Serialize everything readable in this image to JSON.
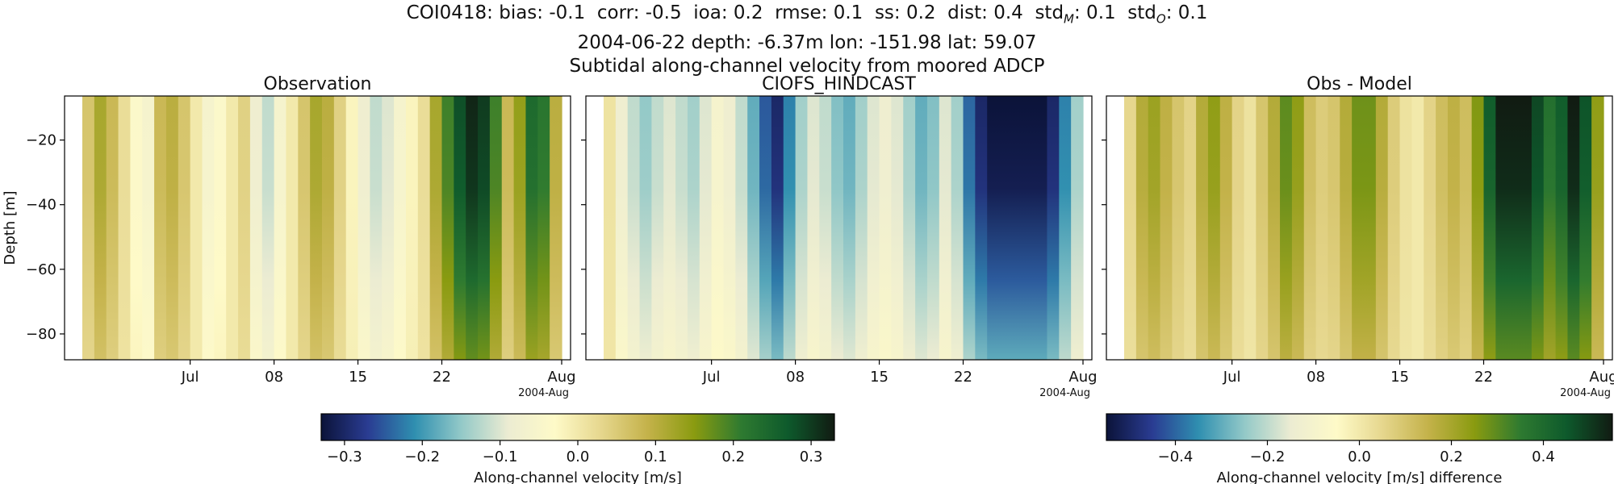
{
  "figure": {
    "title_lines": [
      "2004-06-22 depth: -6.37m lon: -151.98 lat: 59.07",
      "Subtidal along-channel velocity from moored ADCP"
    ],
    "stats": {
      "station": "COI0418",
      "items": [
        {
          "label": "bias",
          "value": "-0.1"
        },
        {
          "label": "corr",
          "value": "-0.5"
        },
        {
          "label": "ioa",
          "value": "0.2"
        },
        {
          "label": "rmse",
          "value": "0.1"
        },
        {
          "label": "ss",
          "value": "0.2"
        },
        {
          "label": "dist",
          "value": "0.4"
        },
        {
          "label": "std",
          "sub": "M",
          "value": "0.1"
        },
        {
          "label": "std",
          "sub": "O",
          "value": "0.1"
        }
      ]
    },
    "colors": {
      "cmap": [
        "#0b1339",
        "#2a3c92",
        "#2f8fb0",
        "#93c9c8",
        "#ececd2",
        "#fefac8",
        "#e6d78e",
        "#c4b24a",
        "#8a9b10",
        "#2e7a30",
        "#0e5a2c",
        "#111b12"
      ],
      "axis": "#000000",
      "background": "#ffffff"
    }
  },
  "chart_data": [
    {
      "type": "heatmap",
      "title": "Observation",
      "ylabel": "Depth [m]",
      "xlabel": "",
      "x_range": [
        "2004-06-22",
        "2004-08-01"
      ],
      "ylim": [
        -88,
        -6.37
      ],
      "x_ticks": [
        {
          "date": "2004-07-01",
          "label": "Jul"
        },
        {
          "date": "2004-07-08",
          "label": "08"
        },
        {
          "date": "2004-07-15",
          "label": "15"
        },
        {
          "date": "2004-07-22",
          "label": "22"
        },
        {
          "date": "2004-08-01",
          "label": "Aug"
        }
      ],
      "x_offset_label": "2004-Aug",
      "y_ticks": [
        -20,
        -40,
        -60,
        -80
      ],
      "clim": [
        -0.33,
        0.33
      ],
      "column_values": [
        0.06,
        0.12,
        0.08,
        0.02,
        -0.04,
        -0.06,
        0.08,
        0.1,
        0.06,
        0.0,
        -0.06,
        -0.04,
        0.0,
        0.04,
        -0.08,
        -0.12,
        -0.06,
        0.0,
        0.06,
        0.12,
        0.1,
        0.04,
        -0.02,
        -0.08,
        -0.12,
        -0.1,
        -0.06,
        -0.02,
        0.02,
        0.12,
        0.2,
        0.28,
        0.32,
        0.3,
        0.2,
        0.08,
        0.14,
        0.24,
        0.22,
        0.1
      ]
    },
    {
      "type": "heatmap",
      "title": "CIOFS_HINDCAST",
      "ylabel": "",
      "xlabel": "",
      "x_range": [
        "2004-06-22",
        "2004-08-01"
      ],
      "ylim": [
        -88,
        -6.37
      ],
      "x_ticks": [
        {
          "date": "2004-07-01",
          "label": "Jul"
        },
        {
          "date": "2004-07-08",
          "label": "08"
        },
        {
          "date": "2004-07-15",
          "label": "15"
        },
        {
          "date": "2004-07-22",
          "label": "22"
        },
        {
          "date": "2004-08-01",
          "label": "Aug"
        }
      ],
      "x_offset_label": "2004-Aug",
      "y_ticks": [
        -20,
        -40,
        -60,
        -80
      ],
      "clim": [
        -0.33,
        0.33
      ],
      "column_values": [
        0.01,
        -0.08,
        -0.12,
        -0.15,
        -0.12,
        -0.1,
        -0.12,
        -0.14,
        -0.1,
        -0.06,
        -0.08,
        -0.12,
        -0.18,
        -0.25,
        -0.3,
        -0.22,
        -0.14,
        -0.1,
        -0.12,
        -0.16,
        -0.18,
        -0.14,
        -0.1,
        -0.08,
        -0.1,
        -0.14,
        -0.18,
        -0.16,
        -0.1,
        -0.14,
        -0.24,
        -0.3,
        -0.33,
        -0.33,
        -0.33,
        -0.33,
        -0.33,
        -0.3,
        -0.22,
        -0.14
      ]
    },
    {
      "type": "heatmap",
      "title": "Obs - Model",
      "ylabel": "",
      "xlabel": "",
      "x_range": [
        "2004-06-22",
        "2004-08-01"
      ],
      "ylim": [
        -88,
        -6.37
      ],
      "x_ticks": [
        {
          "date": "2004-07-01",
          "label": "Jul"
        },
        {
          "date": "2004-07-08",
          "label": "08"
        },
        {
          "date": "2004-07-15",
          "label": "15"
        },
        {
          "date": "2004-07-22",
          "label": "22"
        },
        {
          "date": "2004-08-01",
          "label": "Aug"
        }
      ],
      "x_offset_label": "2004-Aug",
      "y_ticks": [
        -20,
        -40,
        -60,
        -80
      ],
      "clim": [
        -0.55,
        0.55
      ],
      "column_values": [
        0.05,
        0.18,
        0.22,
        0.16,
        0.1,
        0.06,
        0.18,
        0.24,
        0.16,
        0.06,
        0.02,
        0.1,
        0.18,
        0.3,
        0.24,
        0.12,
        0.08,
        0.1,
        0.18,
        0.28,
        0.28,
        0.18,
        0.08,
        0.02,
        0.0,
        0.06,
        0.12,
        0.16,
        0.12,
        0.26,
        0.44,
        0.55,
        0.55,
        0.55,
        0.48,
        0.38,
        0.44,
        0.55,
        0.46,
        0.24
      ]
    },
    {
      "type": "colorbar",
      "label": "Along-channel velocity [m/s]",
      "range": [
        -0.33,
        0.33
      ],
      "ticks": [
        -0.3,
        -0.2,
        -0.1,
        0.0,
        0.1,
        0.2,
        0.3
      ],
      "tick_labels": [
        "−0.3",
        "−0.2",
        "−0.1",
        "0.0",
        "0.1",
        "0.2",
        "0.3"
      ]
    },
    {
      "type": "colorbar",
      "label": "Along-channel velocity [m/s] difference",
      "range": [
        -0.55,
        0.55
      ],
      "ticks": [
        -0.4,
        -0.2,
        0.0,
        0.2,
        0.4
      ],
      "tick_labels": [
        "−0.4",
        "−0.2",
        "0.0",
        "0.2",
        "0.4"
      ]
    }
  ]
}
